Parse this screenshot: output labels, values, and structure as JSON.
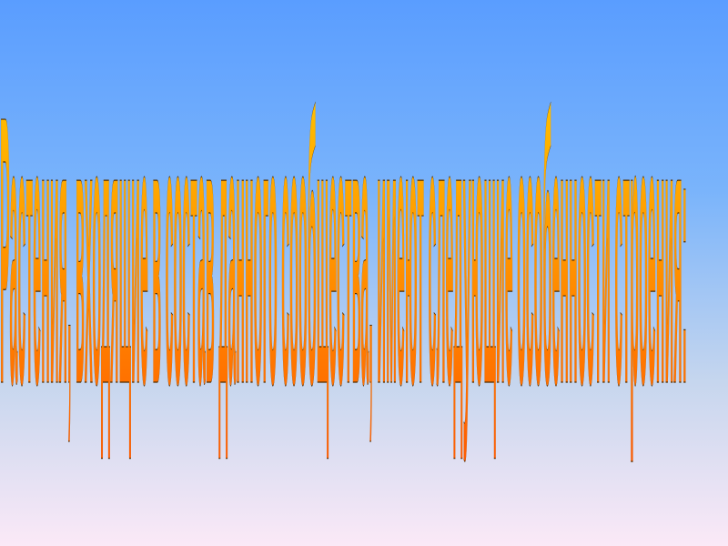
{
  "slide": {
    "wordart_text": "Растения, входящие в состав данного сообщества, имеют следующие особенности строения:",
    "colors": {
      "background_top": "#5a9dff",
      "background_bottom": "#fbe9f7",
      "text_fill_top": "#ffd000",
      "text_fill_bottom": "#ff5a00",
      "text_outline": "#4a2a00"
    }
  }
}
